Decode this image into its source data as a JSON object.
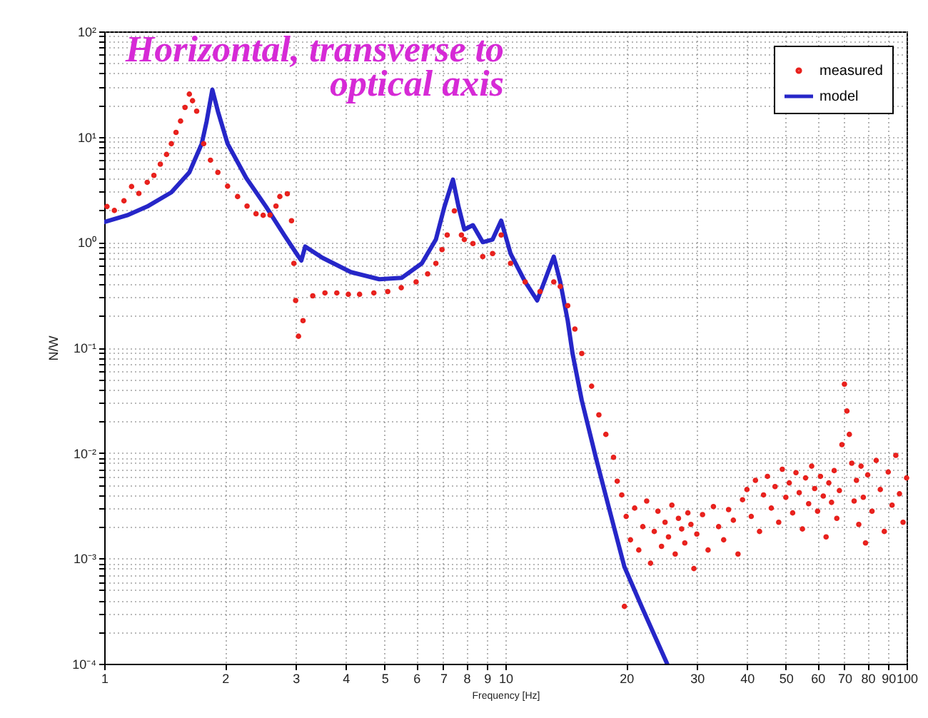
{
  "chart_data": {
    "type": "line",
    "title": "Horizontal, transverse to optical axis",
    "xlabel": "Frequency [Hz]",
    "ylabel": "N/W",
    "log": "xy",
    "xlim": [
      1,
      100
    ],
    "ylim": [
      0.0001,
      100
    ],
    "xticks": [
      1,
      2,
      3,
      4,
      5,
      6,
      7,
      8,
      9,
      10,
      20,
      30,
      40,
      50,
      60,
      70,
      80,
      90,
      100
    ],
    "yticks": [
      {
        "value": 0.0001,
        "label": "10⁻⁴"
      },
      {
        "value": 0.0002,
        "label": null
      },
      {
        "value": 0.0003,
        "label": null
      },
      {
        "value": 0.0004,
        "label": null
      },
      {
        "value": 0.0005,
        "label": null
      },
      {
        "value": 0.0006,
        "label": null
      },
      {
        "value": 0.0007,
        "label": null
      },
      {
        "value": 0.0008,
        "label": null
      },
      {
        "value": 0.0009,
        "label": null
      },
      {
        "value": 0.001,
        "label": "10⁻³"
      },
      {
        "value": 0.002,
        "label": null
      },
      {
        "value": 0.003,
        "label": null
      },
      {
        "value": 0.004,
        "label": null
      },
      {
        "value": 0.005,
        "label": null
      },
      {
        "value": 0.006,
        "label": null
      },
      {
        "value": 0.007,
        "label": null
      },
      {
        "value": 0.008,
        "label": null
      },
      {
        "value": 0.009,
        "label": null
      },
      {
        "value": 0.01,
        "label": "10⁻²"
      },
      {
        "value": 0.02,
        "label": null
      },
      {
        "value": 0.03,
        "label": null
      },
      {
        "value": 0.04,
        "label": null
      },
      {
        "value": 0.05,
        "label": null
      },
      {
        "value": 0.06,
        "label": null
      },
      {
        "value": 0.07,
        "label": null
      },
      {
        "value": 0.08,
        "label": null
      },
      {
        "value": 0.09,
        "label": null
      },
      {
        "value": 0.1,
        "label": "10⁻¹"
      },
      {
        "value": 0.2,
        "label": null
      },
      {
        "value": 0.3,
        "label": null
      },
      {
        "value": 0.4,
        "label": null
      },
      {
        "value": 0.5,
        "label": null
      },
      {
        "value": 0.6,
        "label": null
      },
      {
        "value": 0.7,
        "label": null
      },
      {
        "value": 0.8,
        "label": null
      },
      {
        "value": 0.9,
        "label": null
      },
      {
        "value": 1,
        "label": "10⁰"
      },
      {
        "value": 2,
        "label": null
      },
      {
        "value": 3,
        "label": null
      },
      {
        "value": 4,
        "label": null
      },
      {
        "value": 5,
        "label": null
      },
      {
        "value": 6,
        "label": null
      },
      {
        "value": 7,
        "label": null
      },
      {
        "value": 8,
        "label": null
      },
      {
        "value": 9,
        "label": null
      },
      {
        "value": 10,
        "label": "10¹"
      },
      {
        "value": 20,
        "label": null
      },
      {
        "value": 30,
        "label": null
      },
      {
        "value": 40,
        "label": null
      },
      {
        "value": 50,
        "label": null
      },
      {
        "value": 60,
        "label": null
      },
      {
        "value": 70,
        "label": null
      },
      {
        "value": 80,
        "label": null
      },
      {
        "value": 90,
        "label": null
      },
      {
        "value": 100,
        "label": "10²"
      }
    ],
    "grid": true,
    "legend": "top right",
    "series": [
      {
        "name": "measured",
        "type": "scatter",
        "marker": "circle",
        "color": "#e8201c",
        "x": [
          1.016,
          1.06,
          1.12,
          1.17,
          1.22,
          1.28,
          1.33,
          1.38,
          1.43,
          1.47,
          1.51,
          1.55,
          1.59,
          1.63,
          1.66,
          1.7,
          1.77,
          1.84,
          1.92,
          2.03,
          2.15,
          2.27,
          2.39,
          2.49,
          2.59,
          2.68,
          2.74,
          2.86,
          2.93,
          2.97,
          3.0,
          3.05,
          3.13,
          3.31,
          3.55,
          3.8,
          4.06,
          4.33,
          4.7,
          5.09,
          5.5,
          5.99,
          6.4,
          6.71,
          6.95,
          7.16,
          7.46,
          7.77,
          7.9,
          8.3,
          8.78,
          9.29,
          9.76,
          10.3,
          11.2,
          12.2,
          13.2,
          13.7,
          14.3,
          14.9,
          15.5,
          16.4,
          17.1,
          17.8,
          18.6,
          19.0,
          19.5,
          19.8,
          20,
          20.5,
          21,
          21.5,
          22,
          22.5,
          23,
          23.5,
          24,
          24.5,
          25,
          25.5,
          26,
          26.5,
          27,
          27.5,
          28,
          28.5,
          29,
          29.5,
          30,
          31,
          32,
          33,
          34,
          35,
          36,
          37,
          38,
          39,
          40,
          41,
          42,
          43,
          44,
          45,
          46,
          47,
          48,
          49,
          50,
          51,
          52,
          53,
          54,
          55,
          56,
          57,
          58,
          59,
          60,
          61,
          62,
          63,
          64,
          65,
          66,
          67,
          68,
          69,
          70,
          71,
          72,
          73,
          74,
          75,
          76,
          77,
          78,
          79,
          80,
          82,
          84,
          86,
          88,
          90,
          92,
          94,
          96,
          98,
          100
        ],
        "values": [
          2.18,
          2.0,
          2.47,
          3.37,
          2.9,
          3.7,
          4.3,
          5.5,
          6.8,
          8.6,
          11,
          14.1,
          19,
          25.4,
          22,
          17.5,
          8.6,
          6.0,
          4.6,
          3.4,
          2.71,
          2.2,
          1.86,
          1.8,
          1.81,
          2.2,
          2.71,
          2.88,
          1.6,
          0.63,
          0.28,
          0.128,
          0.18,
          0.31,
          0.33,
          0.33,
          0.32,
          0.32,
          0.33,
          0.34,
          0.37,
          0.42,
          0.5,
          0.63,
          0.85,
          1.17,
          1.98,
          1.17,
          1.06,
          0.97,
          0.73,
          0.78,
          1.17,
          0.63,
          0.42,
          0.34,
          0.42,
          0.38,
          0.25,
          0.15,
          0.088,
          0.043,
          0.023,
          0.015,
          0.0091,
          0.0054,
          0.004,
          0.00035,
          0.0025,
          0.0015,
          0.003,
          0.0012,
          0.002,
          0.0035,
          0.0009,
          0.0018,
          0.0028,
          0.0013,
          0.0022,
          0.0016,
          0.0032,
          0.0011,
          0.0024,
          0.0019,
          0.0014,
          0.0027,
          0.0021,
          0.0008,
          0.0017,
          0.0026,
          0.0012,
          0.0031,
          0.002,
          0.0015,
          0.0029,
          0.0023,
          0.0011,
          0.0036,
          0.0045,
          0.0025,
          0.0055,
          0.0018,
          0.004,
          0.006,
          0.003,
          0.0048,
          0.0022,
          0.007,
          0.0038,
          0.0052,
          0.0027,
          0.0065,
          0.0042,
          0.0019,
          0.0058,
          0.0033,
          0.0075,
          0.0046,
          0.0028,
          0.006,
          0.0039,
          0.0016,
          0.0052,
          0.0034,
          0.0068,
          0.0024,
          0.0044,
          0.012,
          0.045,
          0.025,
          0.015,
          0.008,
          0.0035,
          0.0055,
          0.0021,
          0.0075,
          0.0038,
          0.0014,
          0.0062,
          0.0028,
          0.0085,
          0.0045,
          0.0018,
          0.0066,
          0.0032,
          0.0095,
          0.0041,
          0.0022,
          0.0058
        ]
      },
      {
        "name": "model",
        "line_style": "solid",
        "color": "#2626c8",
        "x": [
          1.0,
          1.14,
          1.28,
          1.47,
          1.63,
          1.75,
          1.8,
          1.86,
          1.92,
          2.03,
          2.26,
          2.53,
          2.81,
          3.05,
          3.1,
          3.17,
          3.5,
          4.12,
          4.85,
          5.52,
          6.19,
          6.71,
          7.05,
          7.4,
          7.64,
          7.9,
          8.3,
          8.78,
          9.29,
          9.76,
          10.3,
          11.2,
          12.0,
          12.5,
          13.2,
          13.7,
          14.3,
          14.7,
          15.5,
          16.8,
          18.3,
          19.8,
          22.0,
          25.3
        ],
        "values": [
          1.55,
          1.8,
          2.18,
          2.97,
          4.6,
          8.6,
          14,
          28,
          17.5,
          8.6,
          4.06,
          2.18,
          1.17,
          0.73,
          0.67,
          0.91,
          0.71,
          0.52,
          0.445,
          0.46,
          0.63,
          1.06,
          2.18,
          3.93,
          2.18,
          1.32,
          1.45,
          1.0,
          1.06,
          1.6,
          0.78,
          0.42,
          0.28,
          0.42,
          0.73,
          0.42,
          0.18,
          0.088,
          0.0316,
          0.0091,
          0.0026,
          0.00083,
          0.00033,
          0.0001
        ]
      }
    ]
  }
}
